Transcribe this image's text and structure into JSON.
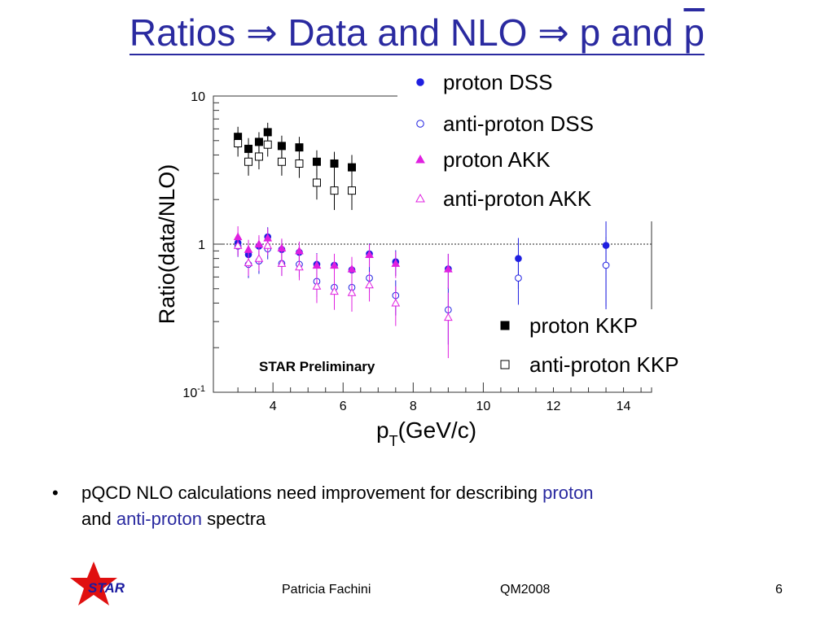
{
  "slide": {
    "title_part1": "Ratios ",
    "arrow": "⇒",
    "title_part2": " Data and NLO ",
    "title_part3": " p and ",
    "title_pbar": "p",
    "bullet_symbol": "•",
    "bullet_text_1": "pQCD NLO calculations need improvement for describing ",
    "bullet_highlight_1": "proton",
    "bullet_text_2": "and ",
    "bullet_highlight_2": "anti-proton",
    "bullet_text_3": " spectra",
    "footer_author": "Patricia Fachini",
    "footer_conf": "QM2008",
    "footer_page": "6",
    "logo_text": "STAR",
    "colors": {
      "title": "#2a2aa0",
      "dss": "#1f1fe0",
      "akk": "#e020e0",
      "kkp": "#000000",
      "logo_star": "#e01010"
    }
  },
  "chart_data": {
    "type": "scatter",
    "xlabel_main": "p",
    "xlabel_sub": "T",
    "xlabel_rest": "(GeV/c)",
    "ylabel": "Ratio(data/NLO)",
    "annotation": "STAR Preliminary",
    "x_ticks": [
      "4",
      "6",
      "8",
      "10",
      "12",
      "14"
    ],
    "y_ticks": [
      {
        "value": 10,
        "label": "10",
        "sup": ""
      },
      {
        "value": 1,
        "label": "1",
        "sup": ""
      },
      {
        "value": 0.1,
        "label": "10",
        "sup": "-1"
      }
    ],
    "xlim": [
      2.3,
      14.8
    ],
    "ylim": [
      0.1,
      10
    ],
    "ylog": true,
    "reference_line": 1,
    "legend_top": [
      {
        "name": "proton DSS",
        "marker": "filled-circle",
        "color": "#1f1fe0"
      },
      {
        "name": "anti-proton DSS",
        "marker": "open-circle",
        "color": "#1f1fe0"
      },
      {
        "name": "proton AKK",
        "marker": "filled-triangle",
        "color": "#e020e0"
      },
      {
        "name": "anti-proton AKK",
        "marker": "open-triangle",
        "color": "#e020e0"
      }
    ],
    "legend_bottom": [
      {
        "name": "proton KKP",
        "marker": "filled-square",
        "color": "#000000"
      },
      {
        "name": "anti-proton KKP",
        "marker": "open-square",
        "color": "#000000"
      }
    ],
    "series": [
      {
        "name": "proton DSS",
        "marker": "filled-circle",
        "color": "#1f1fe0",
        "x": [
          3.0,
          3.3,
          3.6,
          3.85,
          4.25,
          4.75,
          5.25,
          5.75,
          6.25,
          6.75,
          7.5,
          9.0,
          11.0,
          13.5
        ],
        "y": [
          1.02,
          0.85,
          0.97,
          1.12,
          0.92,
          0.88,
          0.73,
          0.72,
          0.67,
          0.86,
          0.76,
          0.68,
          0.8,
          0.98
        ],
        "err": [
          0.18,
          0.15,
          0.15,
          0.18,
          0.15,
          0.14,
          0.14,
          0.14,
          0.14,
          0.15,
          0.15,
          0.18,
          0.3,
          0.6
        ]
      },
      {
        "name": "anti-proton DSS",
        "marker": "open-circle",
        "color": "#1f1fe0",
        "x": [
          3.0,
          3.3,
          3.6,
          3.85,
          4.25,
          4.75,
          5.25,
          5.75,
          6.25,
          6.75,
          7.5,
          9.0,
          11.0,
          13.5
        ],
        "y": [
          0.97,
          0.73,
          0.77,
          0.93,
          0.74,
          0.73,
          0.56,
          0.51,
          0.51,
          0.59,
          0.45,
          0.36,
          0.59,
          0.72
        ],
        "err": [
          0.15,
          0.14,
          0.14,
          0.14,
          0.13,
          0.13,
          0.12,
          0.12,
          0.12,
          0.12,
          0.12,
          0.15,
          0.2,
          0.4
        ]
      },
      {
        "name": "proton AKK",
        "marker": "filled-triangle",
        "color": "#e020e0",
        "x": [
          3.0,
          3.3,
          3.6,
          3.85,
          4.25,
          4.75,
          5.25,
          5.75,
          6.25,
          6.75,
          7.5,
          9.0
        ],
        "y": [
          1.12,
          0.92,
          1.0,
          1.1,
          0.94,
          0.9,
          0.72,
          0.72,
          0.68,
          0.85,
          0.74,
          0.68
        ],
        "err": [
          0.2,
          0.15,
          0.15,
          0.18,
          0.15,
          0.14,
          0.14,
          0.14,
          0.14,
          0.15,
          0.15,
          0.18
        ]
      },
      {
        "name": "anti-proton AKK",
        "marker": "open-triangle",
        "color": "#e020e0",
        "x": [
          3.0,
          3.3,
          3.6,
          3.85,
          4.25,
          4.75,
          5.25,
          5.75,
          6.25,
          6.75,
          7.5,
          9.0
        ],
        "y": [
          0.98,
          0.75,
          0.8,
          0.98,
          0.74,
          0.7,
          0.52,
          0.48,
          0.47,
          0.53,
          0.4,
          0.32
        ],
        "err": [
          0.15,
          0.14,
          0.14,
          0.14,
          0.13,
          0.13,
          0.12,
          0.12,
          0.12,
          0.12,
          0.12,
          0.15
        ]
      },
      {
        "name": "proton KKP",
        "marker": "filled-square",
        "color": "#000000",
        "x": [
          3.0,
          3.3,
          3.6,
          3.85,
          4.25,
          4.75,
          5.25,
          5.75,
          6.25
        ],
        "y": [
          5.3,
          4.4,
          4.9,
          5.7,
          4.6,
          4.5,
          3.6,
          3.5,
          3.3
        ],
        "err": [
          0.9,
          0.8,
          0.8,
          0.9,
          0.8,
          0.8,
          0.7,
          0.7,
          0.7
        ]
      },
      {
        "name": "anti-proton KKP",
        "marker": "open-square",
        "color": "#000000",
        "x": [
          3.0,
          3.3,
          3.6,
          3.85,
          4.25,
          4.75,
          5.25,
          5.75,
          6.25
        ],
        "y": [
          4.8,
          3.6,
          3.9,
          4.7,
          3.6,
          3.5,
          2.6,
          2.3,
          2.3
        ],
        "err": [
          0.9,
          0.7,
          0.7,
          0.8,
          0.7,
          0.7,
          0.6,
          0.6,
          0.6
        ]
      }
    ]
  }
}
